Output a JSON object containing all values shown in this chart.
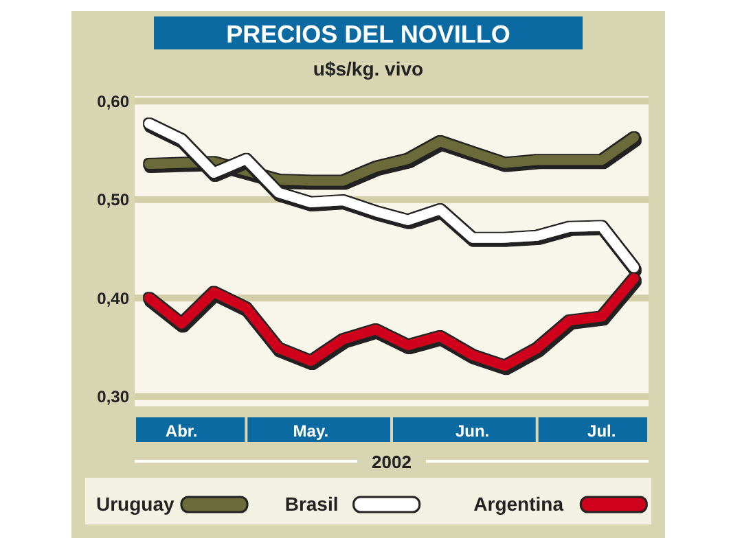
{
  "chart_data": {
    "type": "line",
    "title": "PRECIOS DEL NOVILLO",
    "subtitle": "u$s/kg. vivo",
    "xlabel": "2002",
    "categories": [
      null,
      "Abr.",
      null,
      null,
      null,
      "May.",
      null,
      null,
      null,
      null,
      "Jun.",
      null,
      null,
      null,
      "Jul.",
      null
    ],
    "ylim": [
      0.29,
      0.605
    ],
    "yticks": [
      {
        "value": 0.3,
        "label": "0,30"
      },
      {
        "value": 0.4,
        "label": "0,40"
      },
      {
        "value": 0.5,
        "label": "0,50"
      },
      {
        "value": 0.6,
        "label": "0,60"
      }
    ],
    "grid": "y",
    "legend": "bottom",
    "marker": "none",
    "line_style": "solid",
    "series": [
      {
        "name": "Uruguay",
        "color": "#6b6b3a",
        "values": [
          0.536,
          0.537,
          0.538,
          0.529,
          0.52,
          0.519,
          0.519,
          0.533,
          0.541,
          0.559,
          0.548,
          0.537,
          0.54,
          0.54,
          0.54,
          0.563
        ]
      },
      {
        "name": "Brasil",
        "color": "#ffffff",
        "values": [
          0.577,
          0.561,
          0.527,
          0.541,
          0.507,
          0.497,
          0.499,
          0.488,
          0.479,
          0.49,
          0.461,
          0.461,
          0.463,
          0.472,
          0.473,
          0.431
        ]
      },
      {
        "name": "Argentina",
        "color": "#d0021b",
        "values": [
          0.4,
          0.374,
          0.406,
          0.39,
          0.349,
          0.336,
          0.358,
          0.368,
          0.352,
          0.361,
          0.342,
          0.331,
          0.349,
          0.377,
          0.381,
          0.42
        ]
      }
    ]
  }
}
